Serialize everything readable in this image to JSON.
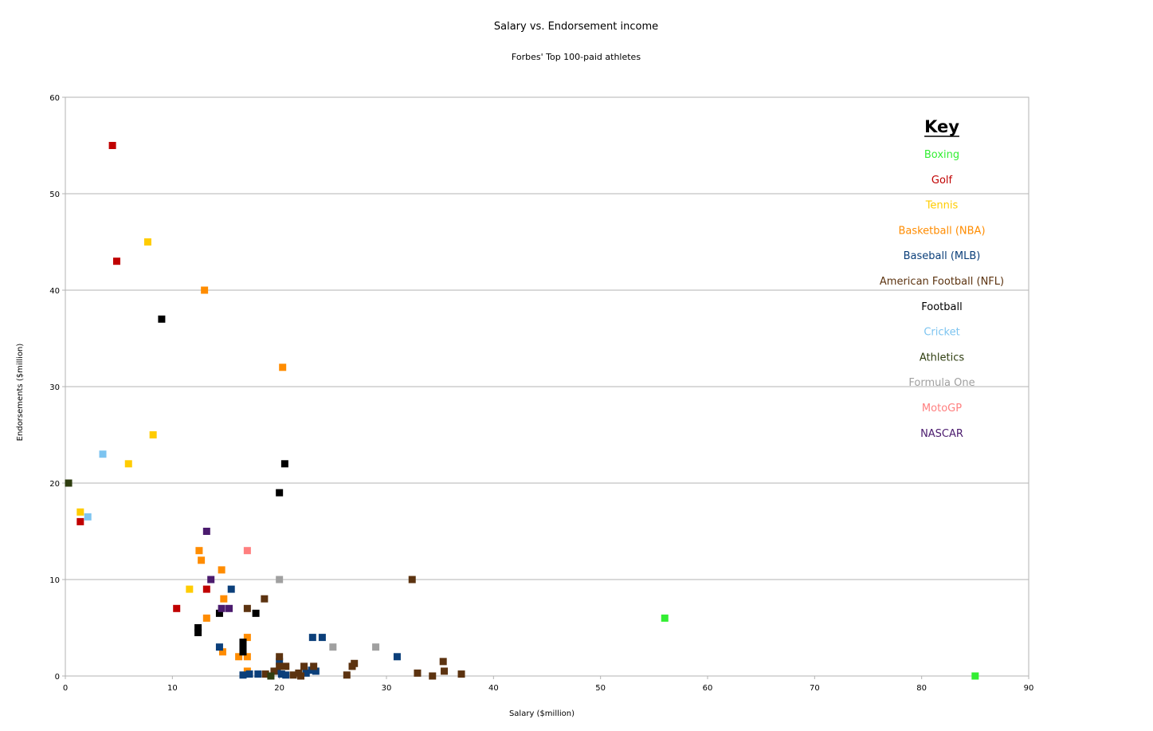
{
  "chart_data": {
    "type": "scatter",
    "title": "Salary vs. Endorsement income",
    "subtitle": "Forbes' Top 100-paid athletes",
    "xlabel": "Salary ($million)",
    "ylabel": "Endorsements ($million)",
    "xlim": [
      0,
      90
    ],
    "ylim": [
      0,
      60
    ],
    "x_ticks": [
      "0",
      "10",
      "20",
      "30",
      "40",
      "50",
      "60",
      "70",
      "80",
      "90"
    ],
    "y_ticks": [
      "0",
      "10",
      "20",
      "30",
      "40",
      "50",
      "60"
    ],
    "grid": "horizontal",
    "legend_title": "Key",
    "legend_position": "top-right",
    "series": [
      {
        "name": "Boxing",
        "color": "#33ee33",
        "points": [
          [
            56,
            6
          ],
          [
            85,
            0
          ]
        ]
      },
      {
        "name": "Golf",
        "color": "#c00000",
        "points": [
          [
            4.4,
            55
          ],
          [
            4.8,
            43
          ],
          [
            1.4,
            16
          ],
          [
            10.4,
            7
          ],
          [
            13.2,
            9
          ]
        ]
      },
      {
        "name": "Tennis",
        "color": "#ffcc00",
        "points": [
          [
            7.7,
            45
          ],
          [
            8.2,
            25
          ],
          [
            5.9,
            22
          ],
          [
            1.4,
            17
          ],
          [
            11.6,
            9
          ]
        ]
      },
      {
        "name": "Basketball (NBA)",
        "color": "#ff8c00",
        "points": [
          [
            13,
            40
          ],
          [
            20.3,
            32
          ],
          [
            12.5,
            13
          ],
          [
            12.7,
            12
          ],
          [
            14.6,
            11
          ],
          [
            14.8,
            8
          ],
          [
            13.2,
            6
          ],
          [
            17,
            4
          ],
          [
            14.7,
            2.5
          ],
          [
            16.2,
            2
          ],
          [
            17,
            2
          ],
          [
            17,
            0.5
          ]
        ]
      },
      {
        "name": "Baseball (MLB)",
        "color": "#0b3f7a",
        "points": [
          [
            15.5,
            9
          ],
          [
            14.4,
            3
          ],
          [
            23.1,
            4
          ],
          [
            24,
            4
          ],
          [
            31,
            2
          ],
          [
            20,
            1.5
          ],
          [
            16.6,
            0.1
          ],
          [
            17.2,
            0.2
          ],
          [
            18,
            0.2
          ],
          [
            20.2,
            0.2
          ],
          [
            20.6,
            0.1
          ],
          [
            22.5,
            0.3
          ],
          [
            23,
            0.6
          ],
          [
            23.4,
            0.5
          ],
          [
            19.8,
            0.5
          ]
        ]
      },
      {
        "name": "American Football (NFL)",
        "color": "#5c3310",
        "points": [
          [
            32.4,
            10
          ],
          [
            18.6,
            8
          ],
          [
            17,
            7
          ],
          [
            20,
            2
          ],
          [
            20,
            1
          ],
          [
            20.6,
            1
          ],
          [
            22.3,
            1
          ],
          [
            23.2,
            1
          ],
          [
            26.8,
            1
          ],
          [
            27,
            1.3
          ],
          [
            35.3,
            1.5
          ],
          [
            35.4,
            0.5
          ],
          [
            26.3,
            0.1
          ],
          [
            32.9,
            0.3
          ],
          [
            34.3,
            0
          ],
          [
            37,
            0.2
          ],
          [
            18.7,
            0.2
          ],
          [
            19.5,
            0.5
          ],
          [
            21.3,
            0.1
          ],
          [
            21.8,
            0.3
          ],
          [
            22,
            0
          ]
        ]
      },
      {
        "name": "Football",
        "color": "#000000",
        "points": [
          [
            9,
            37
          ],
          [
            20.5,
            22
          ],
          [
            20,
            19
          ],
          [
            14.4,
            6.5
          ],
          [
            17.8,
            6.5
          ],
          [
            12.4,
            5
          ],
          [
            12.4,
            4.5
          ],
          [
            16.6,
            3.5
          ],
          [
            16.6,
            3
          ],
          [
            16.6,
            2.5
          ]
        ]
      },
      {
        "name": "Cricket",
        "color": "#7dc4f0",
        "points": [
          [
            3.5,
            23
          ],
          [
            2.1,
            16.5
          ]
        ]
      },
      {
        "name": "Athletics",
        "color": "#2f3e10",
        "points": [
          [
            0.3,
            20
          ],
          [
            19.2,
            0
          ]
        ]
      },
      {
        "name": "Formula One",
        "color": "#a0a0a0",
        "points": [
          [
            20,
            10
          ],
          [
            25,
            3
          ],
          [
            29,
            3
          ]
        ]
      },
      {
        "name": "MotoGP",
        "color": "#ff7f7f",
        "points": [
          [
            17,
            13
          ]
        ]
      },
      {
        "name": "NASCAR",
        "color": "#4b1b6e",
        "points": [
          [
            13.2,
            15
          ],
          [
            13.6,
            10
          ],
          [
            14.6,
            7
          ],
          [
            15.3,
            7
          ]
        ]
      }
    ]
  }
}
